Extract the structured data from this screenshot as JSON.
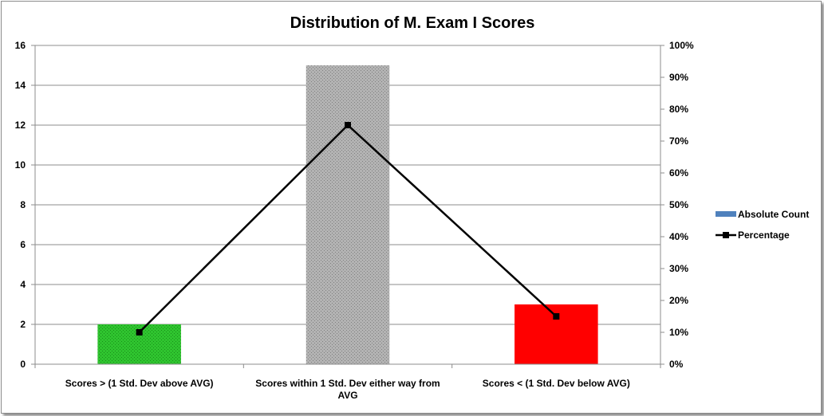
{
  "chart_data": {
    "type": "bar",
    "title": "Distribution of M. Exam I Scores",
    "categories": [
      [
        "Scores > (1 Std. Dev above AVG)"
      ],
      [
        "Scores within 1 Std. Dev either way from",
        "AVG"
      ],
      [
        "Scores < (1 Std. Dev below AVG)"
      ]
    ],
    "series": [
      {
        "name": "Absolute Count",
        "type": "bar",
        "axis": "left",
        "values": [
          2,
          15,
          3
        ],
        "colors": [
          "#2fc42f",
          "#a6a6a6",
          "#ff0000"
        ],
        "legend_color": "#4f81bd"
      },
      {
        "name": "Percentage",
        "type": "line",
        "axis": "right",
        "values": [
          10,
          75,
          15
        ],
        "color": "#000000"
      }
    ],
    "y_left": {
      "min": 0,
      "max": 16,
      "step": 2,
      "ticks": [
        "0",
        "2",
        "4",
        "6",
        "8",
        "10",
        "12",
        "14",
        "16"
      ]
    },
    "y_right": {
      "min": 0,
      "max": 100,
      "step": 10,
      "ticks": [
        "0%",
        "10%",
        "20%",
        "30%",
        "40%",
        "50%",
        "60%",
        "70%",
        "80%",
        "90%",
        "100%"
      ]
    },
    "grid": true,
    "legend_position": "right"
  }
}
